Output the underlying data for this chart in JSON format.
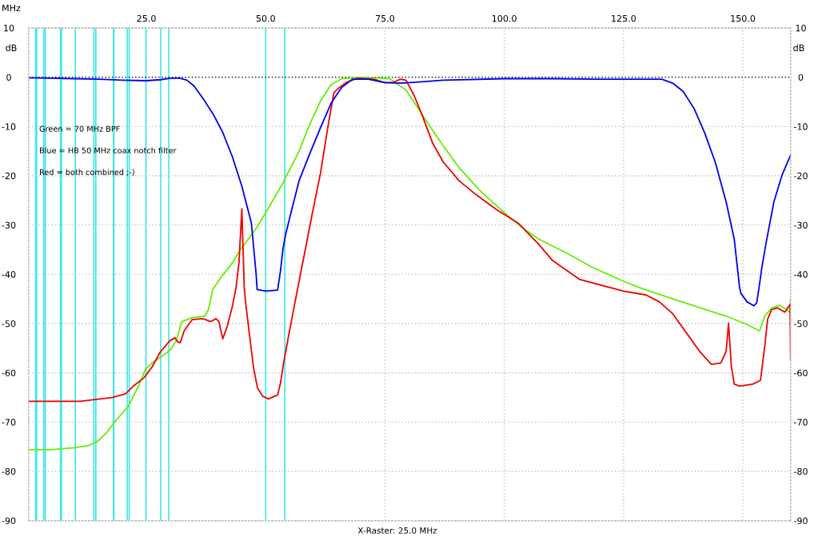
{
  "chart_data": {
    "type": "line",
    "xlabel": "MHz",
    "ylabel": "dB",
    "y2label": "dB",
    "xlim": [
      0.3,
      160
    ],
    "xticks": [
      {
        "value": 25,
        "label": "25.0"
      },
      {
        "value": 50,
        "label": "50.0"
      },
      {
        "value": 75,
        "label": "75.0"
      },
      {
        "value": 100,
        "label": "100.0"
      },
      {
        "value": 125,
        "label": "125.0"
      },
      {
        "value": 150,
        "label": "150.0"
      }
    ],
    "ylim": [
      -90,
      10
    ],
    "yticks": [
      -90,
      -80,
      -70,
      -60,
      -50,
      -40,
      -30,
      -20,
      -10,
      0,
      10
    ],
    "y2lim": [
      -90,
      10
    ],
    "y2ticks": [
      -90,
      -80,
      -70,
      -60,
      -50,
      -40,
      -30,
      -20,
      -10,
      0,
      10
    ],
    "grid": true,
    "annotations": [
      "Green = 70 MHz BPF",
      "Blue = HB 50 MHz coax notch filter",
      "Red = both combined ;-)",
      "X-Raster: 25.0 MHz"
    ],
    "ref_lines": [
      {
        "axis": "y",
        "value": 0,
        "color": "#000000",
        "line_style": "dotted"
      },
      {
        "axis": "x",
        "value": 1.8,
        "color": "#3ee8ef"
      },
      {
        "axis": "x",
        "value": 2.0,
        "color": "#3ee8ef"
      },
      {
        "axis": "x",
        "value": 3.5,
        "color": "#3ee8ef"
      },
      {
        "axis": "x",
        "value": 3.8,
        "color": "#3ee8ef"
      },
      {
        "axis": "x",
        "value": 7.0,
        "color": "#3ee8ef"
      },
      {
        "axis": "x",
        "value": 7.2,
        "color": "#3ee8ef"
      },
      {
        "axis": "x",
        "value": 10.1,
        "color": "#3ee8ef"
      },
      {
        "axis": "x",
        "value": 14.0,
        "color": "#3ee8ef"
      },
      {
        "axis": "x",
        "value": 14.4,
        "color": "#3ee8ef"
      },
      {
        "axis": "x",
        "value": 18.1,
        "color": "#3ee8ef"
      },
      {
        "axis": "x",
        "value": 18.2,
        "color": "#3ee8ef"
      },
      {
        "axis": "x",
        "value": 21.0,
        "color": "#3ee8ef"
      },
      {
        "axis": "x",
        "value": 21.4,
        "color": "#3ee8ef"
      },
      {
        "axis": "x",
        "value": 24.9,
        "color": "#3ee8ef"
      },
      {
        "axis": "x",
        "value": 28.0,
        "color": "#3ee8ef"
      },
      {
        "axis": "x",
        "value": 29.7,
        "color": "#3ee8ef"
      },
      {
        "axis": "x",
        "value": 50.0,
        "color": "#3ee8ef"
      },
      {
        "axis": "x",
        "value": 54.0,
        "color": "#3ee8ef"
      }
    ],
    "series": [
      {
        "color": "#66ee00",
        "x": [
          0.3,
          5,
          10,
          12.8,
          14.8,
          16.7,
          18.4,
          21.2,
          23.4,
          24.8,
          26.2,
          27.9,
          30.1,
          31.3,
          32.4,
          34.6,
          37.2,
          38.0,
          38.9,
          40.8,
          43.0,
          44.7,
          48.0,
          50.3,
          53.6,
          57.0,
          59.2,
          61.5,
          63.7,
          65.9,
          70.4,
          76.0,
          79.4,
          81.6,
          83.8,
          87.2,
          90.5,
          95.0,
          100.0,
          104.0,
          107.3,
          112.9,
          118.5,
          124.5,
          128.0,
          135.3,
          146.5,
          150.9,
          153.5,
          154.6,
          156.0,
          157.7,
          158.8,
          159.8,
          160
        ],
        "values": [
          -75.6,
          -75.6,
          -75.2,
          -74.8,
          -73.9,
          -72.1,
          -69.9,
          -66.8,
          -62.6,
          -59.3,
          -58.0,
          -56.9,
          -55.3,
          -53.4,
          -49.6,
          -48.8,
          -48.5,
          -47.2,
          -43.1,
          -40.4,
          -37.7,
          -35.0,
          -30.7,
          -27.0,
          -21.5,
          -15.0,
          -9.6,
          -4.8,
          -1.5,
          -0.3,
          0,
          -0.3,
          -2.6,
          -5.8,
          -9.1,
          -13.9,
          -18.3,
          -23.1,
          -27.5,
          -30.7,
          -32.9,
          -35.6,
          -38.6,
          -41.2,
          -42.6,
          -45.0,
          -48.5,
          -50.2,
          -51.5,
          -48.5,
          -46.9,
          -46.3,
          -46.9,
          -47.7,
          -45.0
        ]
      },
      {
        "color": "#ee0000",
        "x": [
          0.3,
          11.1,
          17.8,
          20.6,
          22.4,
          24.5,
          26.2,
          27.9,
          29.9,
          31.0,
          31.5,
          32.1,
          32.9,
          34.6,
          36.8,
          38.5,
          39.6,
          40.2,
          41.0,
          41.9,
          43.0,
          43.8,
          44.4,
          45.0,
          45.5,
          45.8,
          46.6,
          47.5,
          48.3,
          49.4,
          50.6,
          52.5,
          53.1,
          53.7,
          54.7,
          55.9,
          57.3,
          59.8,
          61.5,
          63.2,
          64.3,
          65.4,
          67.0,
          69.3,
          72.7,
          74.9,
          76.6,
          78.2,
          79.4,
          81.1,
          82.7,
          85.0,
          87.2,
          90.5,
          93.9,
          98.4,
          102.9,
          107.3,
          110.1,
          115.7,
          124.9,
          129.7,
          132.5,
          135.3,
          138.1,
          140.9,
          143.4,
          145.4,
          146.5,
          147.0,
          147.6,
          148.2,
          149.3,
          152.1,
          153.7,
          154.6,
          155.2,
          156.0,
          157.2,
          158.8,
          159.9,
          160
        ],
        "values": [
          -65.8,
          -65.8,
          -65.0,
          -64.3,
          -62.6,
          -61.0,
          -58.8,
          -55.8,
          -53.5,
          -52.9,
          -53.7,
          -53.9,
          -51.5,
          -49.2,
          -49.0,
          -49.6,
          -49.0,
          -49.6,
          -53.1,
          -50.7,
          -46.6,
          -42.6,
          -37.7,
          -26.7,
          -42.6,
          -45.8,
          -52.3,
          -59.3,
          -63.1,
          -64.8,
          -65.3,
          -64.5,
          -62.1,
          -58.3,
          -53.0,
          -46.9,
          -39.9,
          -27.5,
          -19.4,
          -9.1,
          -3.1,
          -2.1,
          -1.0,
          -0.2,
          -0.4,
          -1.1,
          -1.1,
          -0.4,
          -0.6,
          -3.7,
          -7.5,
          -13.4,
          -17.2,
          -21.0,
          -23.7,
          -26.9,
          -29.6,
          -34.0,
          -37.2,
          -41.0,
          -43.4,
          -44.2,
          -45.6,
          -48.0,
          -51.8,
          -55.6,
          -58.3,
          -58.0,
          -55.6,
          -49.9,
          -58.8,
          -62.3,
          -62.7,
          -62.3,
          -61.5,
          -54.5,
          -49.1,
          -47.2,
          -46.8,
          -47.7,
          -46.1,
          -57.2
        ]
      },
      {
        "color": "#0000ee",
        "x": [
          0.3,
          5,
          10,
          15,
          20,
          25,
          28,
          30,
          32,
          33.5,
          35,
          37,
          39,
          41,
          43,
          45,
          47,
          48.0,
          48.2,
          50,
          52.5,
          53.1,
          53.6,
          54.2,
          55.3,
          57.0,
          59.2,
          61.5,
          63.7,
          65.9,
          68.2,
          71.5,
          74.9,
          78.2,
          81.6,
          87.2,
          100,
          110,
          120,
          133,
          135.3,
          137.5,
          139.8,
          142.0,
          144.2,
          146.5,
          148.2,
          149.3,
          149.6,
          150.9,
          152.3,
          152.9,
          153.5,
          154.0,
          154.8,
          156.5,
          158.2,
          160
        ],
        "values": [
          -0.1,
          -0.2,
          -0.3,
          -0.4,
          -0.6,
          -0.7,
          -0.5,
          -0.2,
          -0.2,
          -0.6,
          -1.8,
          -4.5,
          -7.5,
          -11.2,
          -16.1,
          -22.1,
          -29.6,
          -40.0,
          -43.1,
          -43.4,
          -43.2,
          -39.3,
          -35.0,
          -31.8,
          -27.5,
          -21.0,
          -15.6,
          -10.2,
          -5.3,
          -2.1,
          -0.4,
          -0.4,
          -1.1,
          -1.2,
          -1.0,
          -0.6,
          -0.3,
          -0.3,
          -0.4,
          -0.4,
          -1.2,
          -2.9,
          -6.4,
          -11.3,
          -17.2,
          -25.3,
          -32.9,
          -42.6,
          -43.9,
          -45.6,
          -46.4,
          -45.8,
          -42.0,
          -38.5,
          -34.0,
          -25.3,
          -19.9,
          -15.8
        ]
      }
    ]
  }
}
